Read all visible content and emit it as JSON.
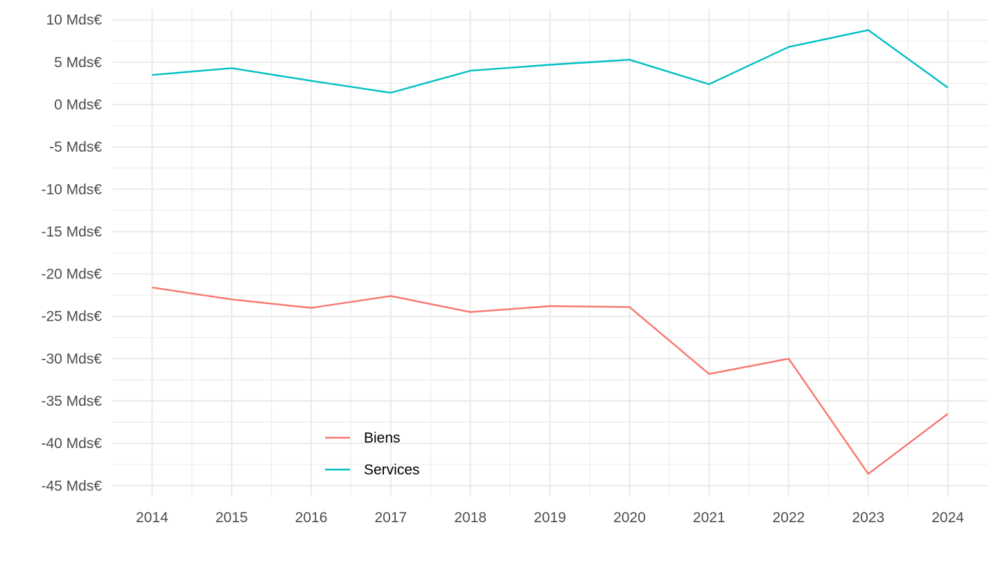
{
  "chart_data": {
    "type": "line",
    "x": [
      2014,
      2015,
      2016,
      2017,
      2018,
      2019,
      2020,
      2021,
      2022,
      2023,
      2024
    ],
    "y_tick_values": [
      10,
      5,
      0,
      -5,
      -10,
      -15,
      -20,
      -25,
      -30,
      -35,
      -40,
      -45
    ],
    "y_tick_labels": [
      "10 Mds€",
      "5 Mds€",
      "0 Mds€",
      "-5 Mds€",
      "-10 Mds€",
      "-15 Mds€",
      "-20 Mds€",
      "-25 Mds€",
      "-30 Mds€",
      "-35 Mds€",
      "-40 Mds€",
      "-45 Mds€"
    ],
    "x_tick_labels": [
      "2014",
      "2015",
      "2016",
      "2017",
      "2018",
      "2019",
      "2020",
      "2021",
      "2022",
      "2023",
      "2024"
    ],
    "xlim": [
      2013.5,
      2024.5
    ],
    "ylim": [
      -46.2,
      11.2
    ],
    "grid": true,
    "legend_position": "bottom-left inside plot",
    "series": [
      {
        "name": "Biens",
        "color": "#F8766D",
        "values": [
          -21.6,
          -23.0,
          -24.0,
          -22.6,
          -24.5,
          -23.8,
          -23.9,
          -31.8,
          -30.0,
          -43.6,
          -36.5
        ]
      },
      {
        "name": "Services",
        "color": "#00BFC4",
        "values": [
          3.5,
          4.3,
          2.8,
          1.4,
          4.0,
          4.7,
          5.3,
          2.4,
          6.8,
          8.8,
          2.0
        ]
      }
    ]
  }
}
